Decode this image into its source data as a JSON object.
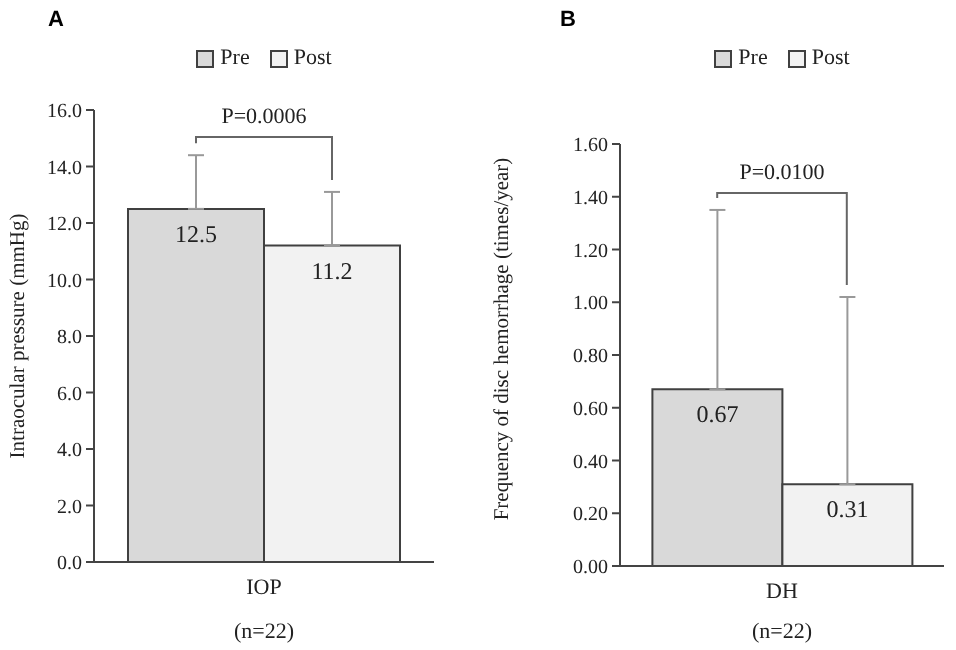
{
  "chart_data": [
    {
      "type": "bar",
      "title": "A",
      "ylabel": "Intraocular pressure (mmHg)",
      "xlabel": "(n=22)",
      "categories": [
        "IOP"
      ],
      "series": [
        {
          "name": "Pre",
          "color": "#d9d9d9",
          "values": [
            12.5
          ],
          "errors": [
            [
              12.5,
              14.4
            ]
          ]
        },
        {
          "name": "Post",
          "color": "#f2f2f2",
          "values": [
            11.2
          ],
          "errors": [
            [
              11.2,
              13.1
            ]
          ]
        }
      ],
      "ylim": [
        0,
        16
      ],
      "yticks": [
        {
          "value": 0,
          "label": "0.0"
        },
        {
          "value": 2,
          "label": "2.0"
        },
        {
          "value": 4,
          "label": "4.0"
        },
        {
          "value": 6,
          "label": "6.0"
        },
        {
          "value": 8,
          "label": "8.0"
        },
        {
          "value": 10,
          "label": "10.0"
        },
        {
          "value": 12,
          "label": "12.0"
        },
        {
          "value": 14,
          "label": "14.0"
        },
        {
          "value": 16,
          "label": "16.0"
        }
      ],
      "annotations": [
        "P=0.0006"
      ],
      "data_labels": true,
      "legend": "top",
      "grid": false
    },
    {
      "type": "bar",
      "title": "B",
      "ylabel": "Frequency of disc hemorrhage (times/year)",
      "xlabel": "(n=22)",
      "categories": [
        "DH"
      ],
      "series": [
        {
          "name": "Pre",
          "color": "#d9d9d9",
          "values": [
            0.67
          ],
          "errors": [
            [
              0.67,
              1.35
            ]
          ]
        },
        {
          "name": "Post",
          "color": "#f2f2f2",
          "values": [
            0.31
          ],
          "errors": [
            [
              0.31,
              1.02
            ]
          ]
        }
      ],
      "ylim": [
        0,
        1.6
      ],
      "yticks": [
        {
          "value": 0,
          "label": "0.00"
        },
        {
          "value": 0.2,
          "label": "0.20"
        },
        {
          "value": 0.4,
          "label": "0.40"
        },
        {
          "value": 0.6,
          "label": "0.60"
        },
        {
          "value": 0.8,
          "label": "0.80"
        },
        {
          "value": 1,
          "label": "1.00"
        },
        {
          "value": 1.2,
          "label": "1.20"
        },
        {
          "value": 1.4,
          "label": "1.40"
        },
        {
          "value": 1.6,
          "label": "1.60"
        }
      ],
      "annotations": [
        "P=0.0100"
      ],
      "data_labels": true,
      "legend": "top",
      "grid": false
    }
  ]
}
